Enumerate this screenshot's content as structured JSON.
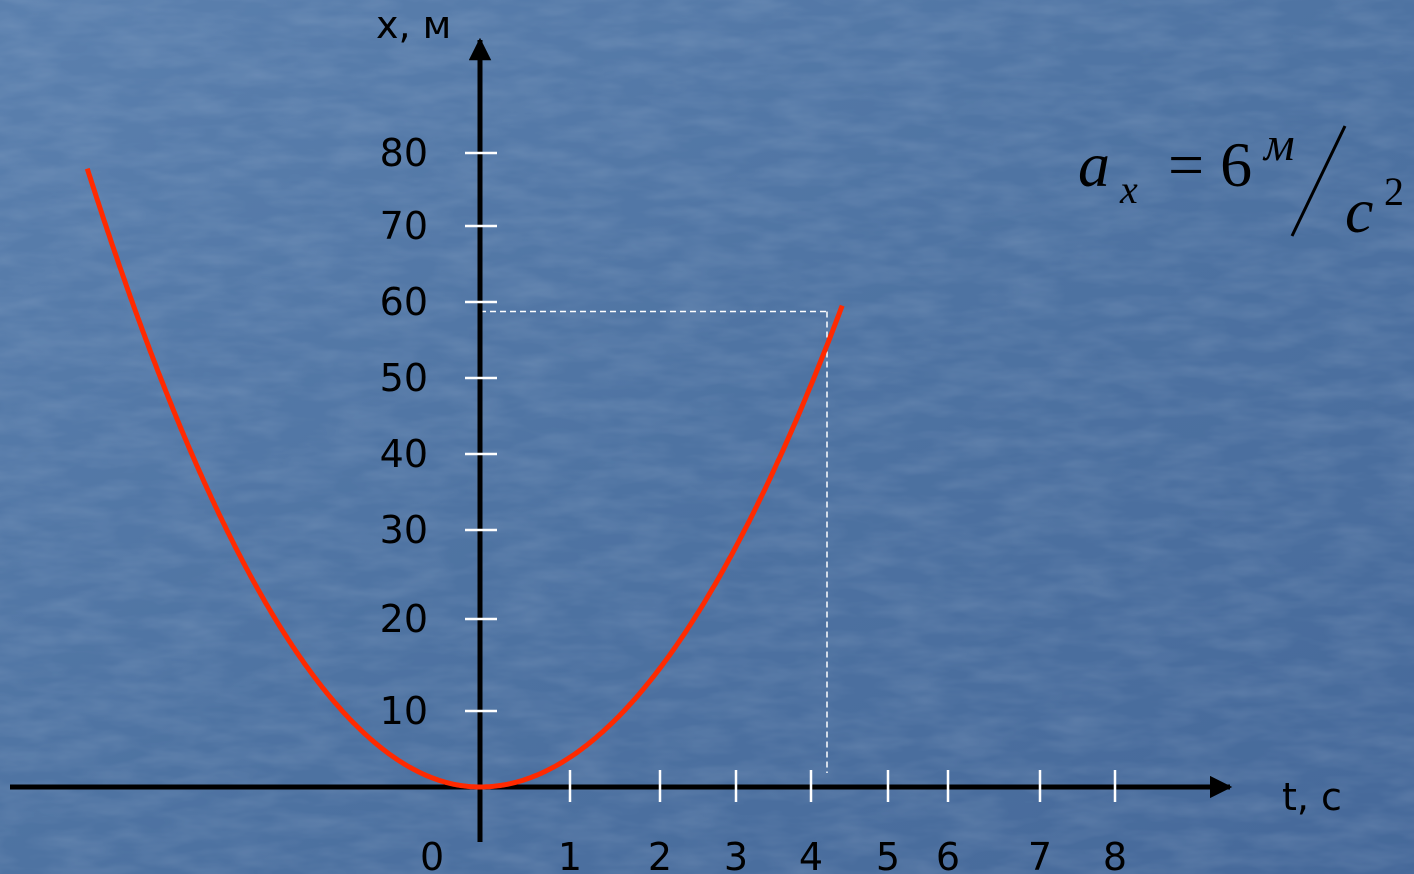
{
  "colors": {
    "background": "#4f74a3",
    "axis": "#000000",
    "curve": "#ff2a00",
    "guide": "#ffffff"
  },
  "chart_data": {
    "type": "line",
    "xlabel": "t, c",
    "ylabel": "x, м",
    "origin_label": "0",
    "x_ticks": [
      "1",
      "2",
      "3",
      "4",
      "5",
      "6",
      "7",
      "8"
    ],
    "y_ticks": [
      "10",
      "20",
      "30",
      "40",
      "50",
      "60",
      "70",
      "80"
    ],
    "series": [
      {
        "function": "x = 3 t^2",
        "t_range": [
          -5.1,
          4.5
        ]
      }
    ],
    "guide_point": {
      "t": 4.4,
      "x": 60
    },
    "annotation": {
      "symbol": "a",
      "subscript": "x",
      "equals": "= 6",
      "unit_num": "м",
      "unit_den": "c",
      "unit_den_power": "2"
    },
    "grid": false
  }
}
